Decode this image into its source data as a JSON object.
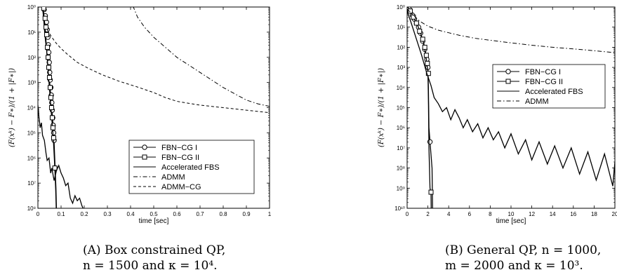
{
  "chart_data": [
    {
      "type": "line",
      "caption_line1": "(A)  Box  constrained  QP,",
      "caption_line2": "n = 1500 and κ = 10⁴.",
      "xlabel": "time [sec]",
      "ylabel": "(F(xᵏ) − F∗)/(1 + |F∗|)",
      "xlim": [
        0,
        1
      ],
      "ylim_log10": [
        -8,
        0
      ],
      "x_ticks": [
        0,
        0.1,
        0.2,
        0.3,
        0.4,
        0.5,
        0.6,
        0.7,
        0.8,
        0.9,
        1
      ],
      "x_tick_labels": [
        "0",
        "0.1",
        "0.2",
        "0.3",
        "0.4",
        "0.5",
        "0.6",
        "0.7",
        "0.8",
        "0.9",
        "1"
      ],
      "y_tick_labels": [
        "10⁸",
        "10⁷",
        "10⁶",
        "10⁵",
        "10⁴",
        "10³",
        "10²",
        "10¹",
        "10⁰"
      ],
      "legend_position": "lower-right",
      "series": [
        {
          "name": "FBN−CG I",
          "style": "solid-circle",
          "points": [
            [
              0.02,
              0
            ],
            [
              0.025,
              -0.5
            ],
            [
              0.03,
              -1.1
            ],
            [
              0.035,
              -1.5
            ],
            [
              0.04,
              -1.9
            ],
            [
              0.045,
              -2.4
            ],
            [
              0.05,
              -2.9
            ],
            [
              0.055,
              -3.5
            ],
            [
              0.06,
              -4.0
            ],
            [
              0.065,
              -4.7
            ],
            [
              0.07,
              -5.4
            ],
            [
              0.074,
              -6.3
            ],
            [
              0.078,
              -7.2
            ],
            [
              0.08,
              -8
            ]
          ],
          "markers": [
            [
              0.027,
              -0.1
            ],
            [
              0.032,
              -0.35
            ],
            [
              0.037,
              -0.6
            ],
            [
              0.04,
              -0.9
            ],
            [
              0.043,
              -1.2
            ],
            [
              0.045,
              -1.5
            ],
            [
              0.047,
              -1.8
            ],
            [
              0.049,
              -2.2
            ],
            [
              0.051,
              -2.6
            ],
            [
              0.053,
              -2.9
            ],
            [
              0.056,
              -3.2
            ],
            [
              0.058,
              -3.5
            ],
            [
              0.06,
              -3.8
            ],
            [
              0.062,
              -4.1
            ],
            [
              0.064,
              -4.4
            ],
            [
              0.066,
              -4.7
            ],
            [
              0.068,
              -5.0
            ],
            [
              0.07,
              -5.3
            ],
            [
              0.074,
              -6.4
            ]
          ]
        },
        {
          "name": "FBN−CG II",
          "style": "solid-square",
          "points": [
            [
              0.022,
              0
            ],
            [
              0.028,
              -0.5
            ],
            [
              0.032,
              -1.0
            ],
            [
              0.036,
              -1.5
            ],
            [
              0.04,
              -2.0
            ],
            [
              0.044,
              -2.5
            ],
            [
              0.048,
              -3.0
            ],
            [
              0.052,
              -3.5
            ],
            [
              0.057,
              -4.1
            ],
            [
              0.062,
              -4.7
            ],
            [
              0.067,
              -5.3
            ],
            [
              0.073,
              -6.4
            ],
            [
              0.077,
              -7.3
            ],
            [
              0.079,
              -8
            ]
          ],
          "markers": [
            [
              0.025,
              -0.05
            ],
            [
              0.031,
              -0.45
            ],
            [
              0.035,
              -0.8
            ],
            [
              0.038,
              -1.1
            ],
            [
              0.041,
              -1.6
            ],
            [
              0.044,
              -2.0
            ],
            [
              0.047,
              -2.4
            ],
            [
              0.05,
              -2.8
            ],
            [
              0.053,
              -3.2
            ],
            [
              0.056,
              -3.6
            ],
            [
              0.059,
              -4.0
            ],
            [
              0.062,
              -4.4
            ],
            [
              0.065,
              -4.8
            ],
            [
              0.068,
              -5.2
            ],
            [
              0.073,
              -6.4
            ]
          ]
        },
        {
          "name": "Accelerated FBS",
          "style": "solid",
          "points": [
            [
              0,
              -3.9
            ],
            [
              0.005,
              -4.4
            ],
            [
              0.01,
              -4.8
            ],
            [
              0.015,
              -4.6
            ],
            [
              0.02,
              -5.1
            ],
            [
              0.028,
              -5.3
            ],
            [
              0.035,
              -5.8
            ],
            [
              0.04,
              -6.1
            ],
            [
              0.048,
              -6.0
            ],
            [
              0.055,
              -6.6
            ],
            [
              0.06,
              -6.4
            ],
            [
              0.07,
              -6.9
            ],
            [
              0.08,
              -6.5
            ],
            [
              0.09,
              -6.3
            ],
            [
              0.1,
              -6.6
            ],
            [
              0.11,
              -6.8
            ],
            [
              0.12,
              -7.1
            ],
            [
              0.13,
              -7.0
            ],
            [
              0.14,
              -7.6
            ],
            [
              0.15,
              -7.8
            ],
            [
              0.16,
              -7.5
            ],
            [
              0.17,
              -7.7
            ],
            [
              0.18,
              -7.6
            ],
            [
              0.19,
              -7.9
            ],
            [
              0.195,
              -8
            ]
          ]
        },
        {
          "name": "ADMM",
          "style": "dash-dot",
          "points": [
            [
              0.41,
              0.05
            ],
            [
              0.43,
              -0.4
            ],
            [
              0.46,
              -0.8
            ],
            [
              0.5,
              -1.2
            ],
            [
              0.55,
              -1.6
            ],
            [
              0.6,
              -2.0
            ],
            [
              0.65,
              -2.3
            ],
            [
              0.7,
              -2.6
            ],
            [
              0.75,
              -2.9
            ],
            [
              0.8,
              -3.2
            ],
            [
              0.85,
              -3.45
            ],
            [
              0.9,
              -3.7
            ],
            [
              0.95,
              -3.85
            ],
            [
              1.0,
              -3.95
            ]
          ]
        },
        {
          "name": "ADMM−CG",
          "style": "dashed",
          "points": [
            [
              0.04,
              -0.9
            ],
            [
              0.06,
              -1.2
            ],
            [
              0.08,
              -1.45
            ],
            [
              0.1,
              -1.65
            ],
            [
              0.13,
              -1.9
            ],
            [
              0.17,
              -2.2
            ],
            [
              0.22,
              -2.45
            ],
            [
              0.28,
              -2.7
            ],
            [
              0.35,
              -2.95
            ],
            [
              0.42,
              -3.15
            ],
            [
              0.5,
              -3.4
            ],
            [
              0.55,
              -3.6
            ],
            [
              0.6,
              -3.75
            ],
            [
              0.7,
              -3.9
            ],
            [
              0.8,
              -4.0
            ],
            [
              0.9,
              -4.1
            ],
            [
              1.0,
              -4.2
            ]
          ]
        }
      ]
    },
    {
      "type": "line",
      "caption_line1": "(B)  General  QP,  n = 1000,",
      "caption_line2": "m = 2000 and κ = 10³.",
      "xlabel": "time [sec]",
      "ylabel": "(F(xᵏ) − F∗)/(1 + |F∗|)",
      "xlim": [
        0,
        20
      ],
      "ylim_log10": [
        -10,
        0
      ],
      "x_ticks": [
        0,
        2,
        4,
        6,
        8,
        10,
        12,
        14,
        16,
        18,
        20
      ],
      "x_tick_labels": [
        "0",
        "2",
        "4",
        "6",
        "8",
        "10",
        "12",
        "14",
        "16",
        "18",
        "20"
      ],
      "y_tick_labels": [
        "10¹⁰",
        "10⁹",
        "10⁸",
        "10⁷",
        "10⁶",
        "10⁵",
        "10⁴",
        "10³",
        "10²",
        "10¹",
        "10⁰"
      ],
      "legend_position": "upper-right",
      "series": [
        {
          "name": "FBN−CG I",
          "style": "solid-circle",
          "points": [
            [
              0.1,
              0
            ],
            [
              0.5,
              -0.4
            ],
            [
              0.9,
              -0.8
            ],
            [
              1.2,
              -1.2
            ],
            [
              1.5,
              -1.7
            ],
            [
              1.8,
              -2.3
            ],
            [
              2.0,
              -3.0
            ],
            [
              2.05,
              -4.0
            ],
            [
              2.1,
              -6.0
            ],
            [
              2.2,
              -6.7
            ],
            [
              2.4,
              -8.0
            ],
            [
              2.45,
              -10
            ]
          ],
          "markers": [
            [
              0.2,
              -0.1
            ],
            [
              0.5,
              -0.4
            ],
            [
              0.7,
              -0.6
            ],
            [
              0.9,
              -0.8
            ],
            [
              1.1,
              -1.0
            ],
            [
              1.3,
              -1.3
            ],
            [
              1.5,
              -1.7
            ],
            [
              1.7,
              -2.1
            ],
            [
              1.9,
              -2.6
            ],
            [
              2.0,
              -3.0
            ],
            [
              2.2,
              -6.7
            ]
          ]
        },
        {
          "name": "FBN−CG II",
          "style": "solid-square",
          "points": [
            [
              0.1,
              0
            ],
            [
              0.4,
              -0.3
            ],
            [
              0.7,
              -0.6
            ],
            [
              1.0,
              -0.9
            ],
            [
              1.3,
              -1.3
            ],
            [
              1.6,
              -1.8
            ],
            [
              1.8,
              -2.4
            ],
            [
              2.0,
              -3.2
            ],
            [
              2.05,
              -4.5
            ],
            [
              2.1,
              -7.0
            ],
            [
              2.2,
              -9.0
            ],
            [
              2.3,
              -9.2
            ],
            [
              2.32,
              -10
            ]
          ],
          "markers": [
            [
              0.3,
              -0.2
            ],
            [
              0.6,
              -0.5
            ],
            [
              0.9,
              -0.8
            ],
            [
              1.2,
              -1.2
            ],
            [
              1.5,
              -1.6
            ],
            [
              1.7,
              -2.0
            ],
            [
              1.85,
              -2.4
            ],
            [
              1.95,
              -2.8
            ],
            [
              2.05,
              -3.3
            ],
            [
              2.3,
              -9.2
            ]
          ]
        },
        {
          "name": "Accelerated FBS",
          "style": "solid",
          "points": [
            [
              0,
              -0.2
            ],
            [
              0.4,
              -0.8
            ],
            [
              0.9,
              -1.6
            ],
            [
              1.4,
              -2.4
            ],
            [
              1.9,
              -3.3
            ],
            [
              2.3,
              -3.9
            ],
            [
              2.6,
              -4.5
            ],
            [
              3.0,
              -4.8
            ],
            [
              3.4,
              -5.2
            ],
            [
              3.8,
              -5.0
            ],
            [
              4.2,
              -5.6
            ],
            [
              4.6,
              -5.1
            ],
            [
              5.0,
              -5.5
            ],
            [
              5.4,
              -6.0
            ],
            [
              5.8,
              -5.6
            ],
            [
              6.3,
              -6.2
            ],
            [
              6.8,
              -5.8
            ],
            [
              7.3,
              -6.5
            ],
            [
              7.8,
              -6.0
            ],
            [
              8.3,
              -6.6
            ],
            [
              8.8,
              -6.2
            ],
            [
              9.4,
              -7.0
            ],
            [
              10.0,
              -6.3
            ],
            [
              10.7,
              -7.3
            ],
            [
              11.4,
              -6.6
            ],
            [
              12.0,
              -7.6
            ],
            [
              12.7,
              -6.7
            ],
            [
              13.5,
              -7.8
            ],
            [
              14.2,
              -6.9
            ],
            [
              15.0,
              -8.0
            ],
            [
              15.8,
              -7.0
            ],
            [
              16.6,
              -8.3
            ],
            [
              17.4,
              -7.2
            ],
            [
              18.2,
              -8.6
            ],
            [
              19.0,
              -7.3
            ],
            [
              19.8,
              -8.9
            ],
            [
              20,
              -7.7
            ]
          ]
        },
        {
          "name": "ADMM",
          "style": "dash-dot",
          "points": [
            [
              0,
              -0.1
            ],
            [
              0.6,
              -0.4
            ],
            [
              1.2,
              -0.7
            ],
            [
              2.0,
              -0.95
            ],
            [
              3.0,
              -1.15
            ],
            [
              4.0,
              -1.28
            ],
            [
              5.0,
              -1.4
            ],
            [
              6.5,
              -1.55
            ],
            [
              8.0,
              -1.65
            ],
            [
              10.0,
              -1.78
            ],
            [
              12.0,
              -1.9
            ],
            [
              14.0,
              -2.0
            ],
            [
              16.0,
              -2.08
            ],
            [
              18.0,
              -2.17
            ],
            [
              20.0,
              -2.27
            ]
          ]
        }
      ]
    }
  ]
}
